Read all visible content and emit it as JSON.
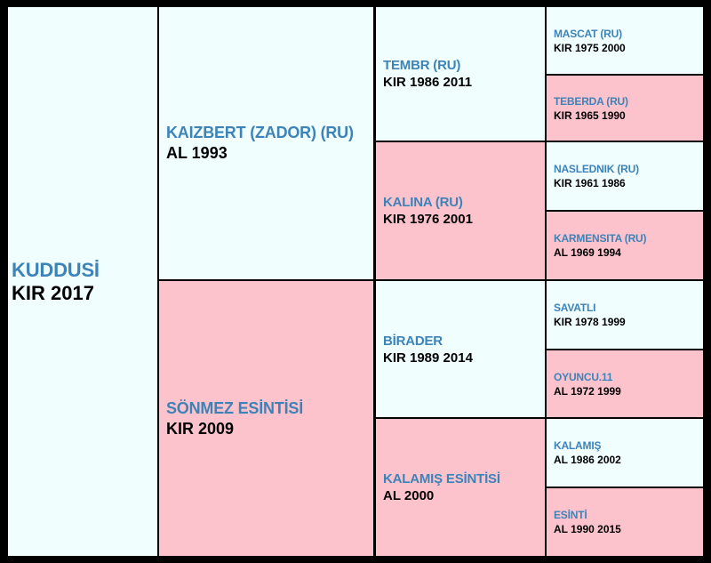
{
  "pedigree": {
    "subject": {
      "name": "KUDDUSİ",
      "info": "KIR 2017"
    },
    "sire": {
      "name": "KAIZBERT (ZADOR) (RU)",
      "info": "AL 1993"
    },
    "dam": {
      "name": "SÖNMEZ ESİNTİSİ",
      "info": "KIR 2009"
    },
    "sire_sire": {
      "name": "TEMBR (RU)",
      "info": "KIR 1986 2011"
    },
    "sire_dam": {
      "name": "KALINA (RU)",
      "info": "KIR 1976 2001"
    },
    "dam_sire": {
      "name": "BİRADER",
      "info": "KIR 1989 2014"
    },
    "dam_dam": {
      "name": "KALAMIŞ ESİNTİSİ",
      "info": "AL 2000"
    },
    "ggp": [
      {
        "name": "MASCAT (RU)",
        "info": "KIR 1975 2000"
      },
      {
        "name": "TEBERDA (RU)",
        "info": "KIR 1965 1990"
      },
      {
        "name": "NASLEDNIK (RU)",
        "info": "KIR 1961 1986"
      },
      {
        "name": "KARMENSITA (RU)",
        "info": "AL 1969 1994"
      },
      {
        "name": "SAVATLI",
        "info": "KIR 1978 1999"
      },
      {
        "name": "OYUNCU.11",
        "info": "AL 1972 1999"
      },
      {
        "name": "KALAMIŞ",
        "info": "AL 1986 2002"
      },
      {
        "name": "ESİNTİ",
        "info": "AL 1990 2015"
      }
    ]
  },
  "colors": {
    "male_bg": "#f0fefe",
    "female_bg": "#fdc3cc",
    "name_text": "#3d83b8",
    "border": "#000000"
  }
}
